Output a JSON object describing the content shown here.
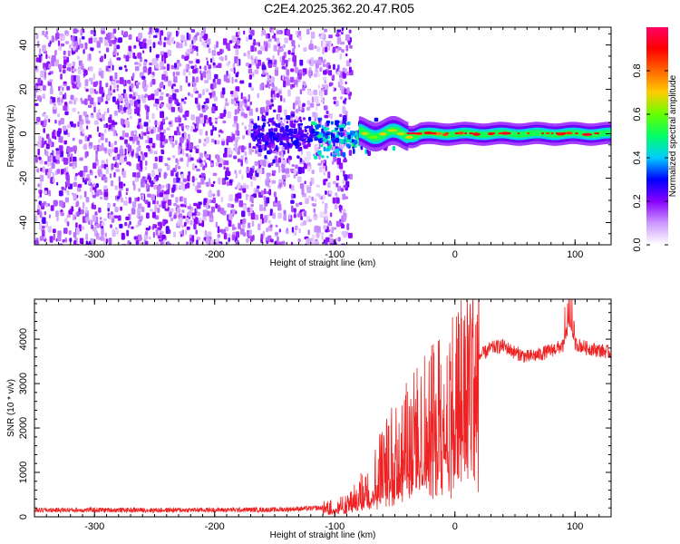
{
  "title": "C2E4.2025.362.20.47.R05",
  "chart_data": [
    {
      "type": "heatmap",
      "xlabel": "Height of straight line (km)",
      "ylabel": "Frequency (Hz)",
      "xlim": [
        -350,
        130
      ],
      "ylim": [
        -50,
        48
      ],
      "x_ticks": [
        -300,
        -200,
        -100,
        0,
        100
      ],
      "y_ticks": [
        -40,
        -20,
        0,
        20,
        40
      ],
      "colorbar": {
        "label": "Normalized spectral amplitude",
        "range": [
          0,
          1
        ],
        "ticks": [
          0.0,
          0.2,
          0.4,
          0.6,
          0.8
        ],
        "colors": [
          "#ffffff",
          "#cc99ff",
          "#8800ff",
          "#0000ff",
          "#00ccff",
          "#00ff66",
          "#66ff00",
          "#ffcc00",
          "#ff6600",
          "#ff0000",
          "#ff0066"
        ]
      },
      "regions": [
        {
          "name": "noise",
          "x_range": [
            -350,
            -100
          ],
          "freq_range": [
            -50,
            48
          ],
          "amplitude": 0.15
        },
        {
          "name": "scattered",
          "x_range": [
            -100,
            -60
          ],
          "freq_range": [
            -10,
            10
          ],
          "amplitude": 0.3
        },
        {
          "name": "tone",
          "x_range": [
            -60,
            130
          ],
          "freq_range": [
            -2,
            2
          ],
          "amplitude": 0.8
        }
      ]
    },
    {
      "type": "line",
      "xlabel": "Height of straight line (km)",
      "ylabel": "SNR (10 * v/v)",
      "xlim": [
        -350,
        130
      ],
      "ylim": [
        0,
        4900
      ],
      "x_ticks": [
        -300,
        -200,
        -100,
        0,
        100
      ],
      "y_ticks": [
        0,
        1000,
        2000,
        3000,
        4000
      ],
      "series": [
        {
          "color": "#ee2222",
          "x": [
            -350,
            -300,
            -250,
            -200,
            -150,
            -110,
            -90,
            -80,
            -70,
            -60,
            -50,
            -40,
            -30,
            -20,
            -10,
            0,
            10,
            20,
            30,
            40,
            50,
            60,
            70,
            80,
            90,
            95,
            100,
            110,
            120,
            130
          ],
          "y": [
            150,
            155,
            150,
            155,
            160,
            200,
            280,
            500,
            900,
            1200,
            1500,
            1800,
            2000,
            2200,
            2500,
            2800,
            3200,
            3600,
            3800,
            3850,
            3700,
            3600,
            3650,
            3750,
            3850,
            4400,
            3900,
            3800,
            3750,
            3700
          ]
        }
      ]
    }
  ]
}
